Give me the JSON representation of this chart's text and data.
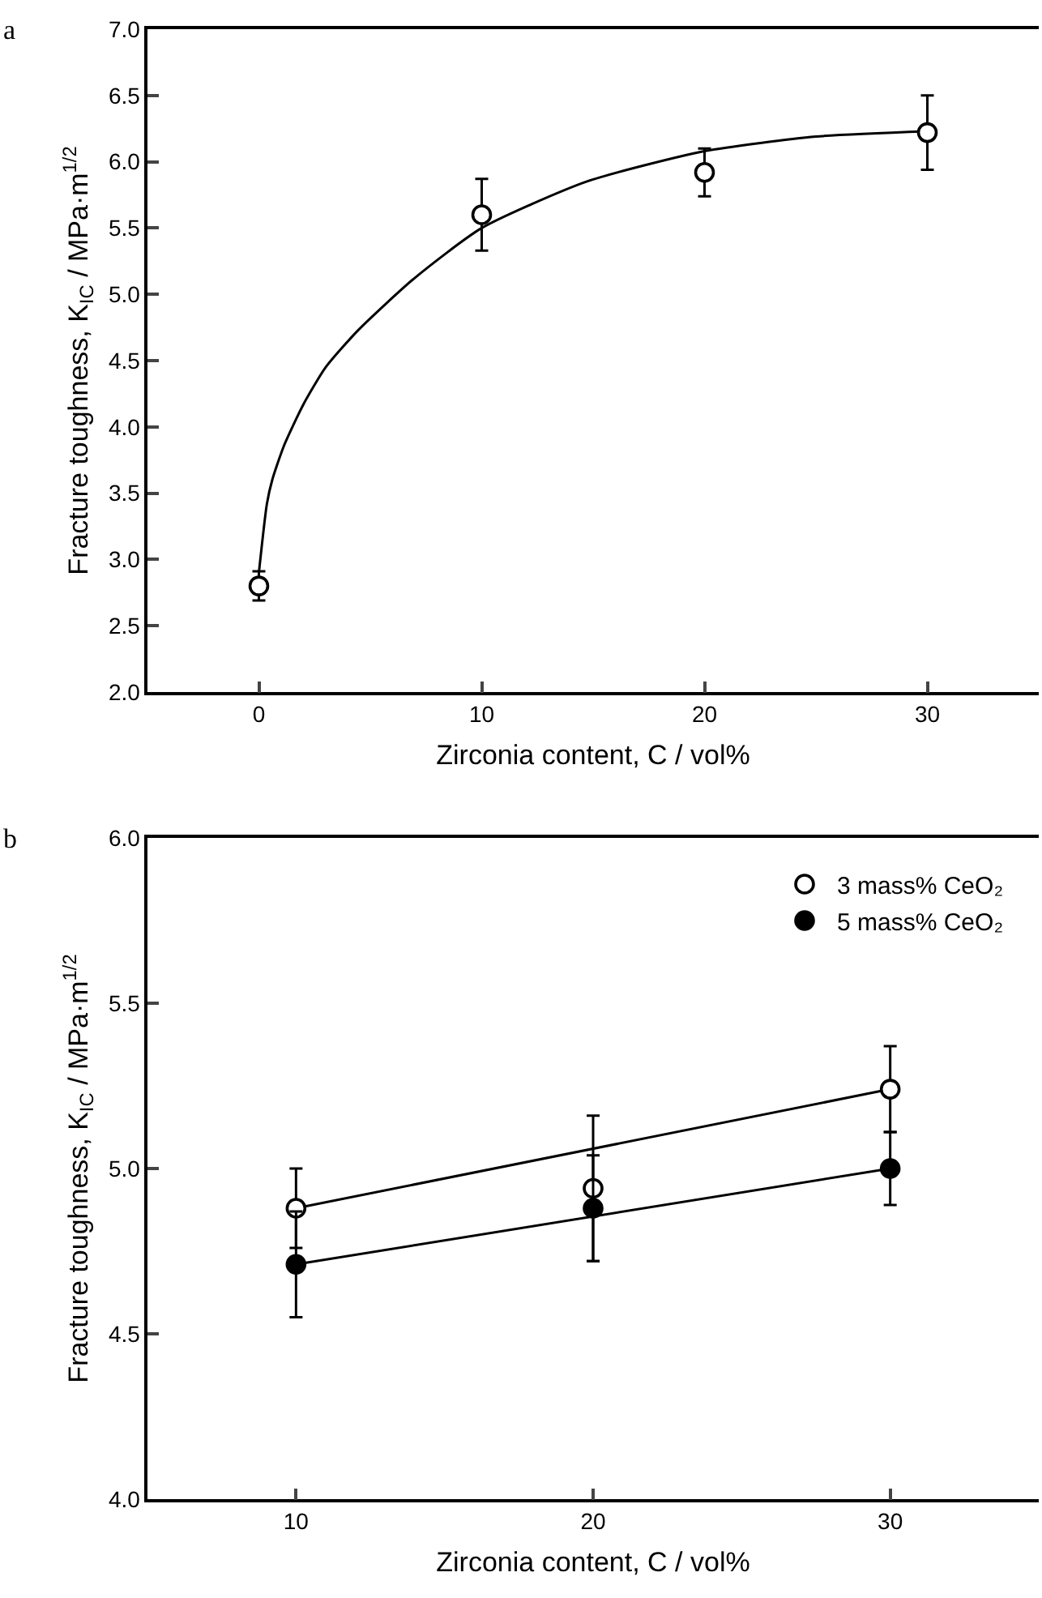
{
  "chart_data": [
    {
      "type": "scatter",
      "xlabel": "Zirconia content, C / vol%",
      "ylabel": "Fracture toughness, K$_{IC}$ / MPa·m$^{1/2}$",
      "annotations": [
        "a"
      ],
      "x": [
        0,
        10,
        20,
        30
      ],
      "series": [
        {
          "color": "#ffffff",
          "values": [
            2.8,
            5.6,
            5.92,
            6.22
          ],
          "errors": [
            0.11,
            0.27,
            0.18,
            0.28
          ],
          "marker": "circle"
        },
        {
          "type": "line",
          "color": "#000000",
          "marker": "none",
          "x": [
            0,
            0.36,
            0.6,
            1.13,
            2,
            3,
            4.46,
            6.97,
            10,
            14.7,
            20,
            25,
            30
          ],
          "values": [
            2.9,
            3.42,
            3.6,
            3.86,
            4.17,
            4.45,
            4.73,
            5.12,
            5.5,
            5.85,
            6.08,
            6.19,
            6.23
          ]
        }
      ],
      "xlim": [
        -5,
        35
      ],
      "xticks": [
        0,
        10,
        20,
        30
      ],
      "ylim": [
        2,
        7
      ],
      "yticks": [
        {
          "value": 2,
          "label": "2.0"
        },
        {
          "value": 2.5,
          "label": "2.5"
        },
        {
          "value": 3,
          "label": "3.0"
        },
        {
          "value": 3.5,
          "label": "3.5"
        },
        {
          "value": 4,
          "label": "4.0"
        },
        {
          "value": 4.5,
          "label": "4.5"
        },
        {
          "value": 5,
          "label": "5.0"
        },
        {
          "value": 5.5,
          "label": "5.5"
        },
        {
          "value": 6,
          "label": "6.0"
        },
        {
          "value": 6.5,
          "label": "6.5"
        },
        {
          "value": 7,
          "label": "7.0"
        }
      ],
      "grid": false,
      "legend": false
    },
    {
      "type": "scatter",
      "xlabel": "Zirconia content, C / vol%",
      "ylabel": "Fracture toughness, K$_{IC}$ / MPa·m$^{1/2}$",
      "annotations": [
        "b"
      ],
      "x": [
        10,
        20,
        30
      ],
      "series": [
        {
          "name": "3 mass% CeO₂",
          "color": "#ffffff",
          "values": [
            4.88,
            4.94,
            5.24
          ],
          "errors": [
            0.12,
            0.22,
            0.13
          ],
          "marker": "circle"
        },
        {
          "name": "5 mass% CeO₂",
          "color": "#000000",
          "values": [
            4.71,
            4.88,
            5.0
          ],
          "errors": [
            0.16,
            0.16,
            0.11
          ],
          "marker": "circle"
        },
        {
          "type": "line",
          "color": "#000000",
          "marker": "none",
          "x": [
            10,
            30
          ],
          "values": [
            4.88,
            5.24
          ]
        },
        {
          "type": "line",
          "color": "#000000",
          "marker": "none",
          "x": [
            10,
            30
          ],
          "values": [
            4.71,
            5.0
          ]
        }
      ],
      "xlim": [
        5,
        35
      ],
      "xticks": [
        10,
        20,
        30
      ],
      "ylim": [
        4,
        6
      ],
      "yticks": [
        {
          "value": 4,
          "label": "4.0"
        },
        {
          "value": 4.5,
          "label": "4.5"
        },
        {
          "value": 5,
          "label": "5.0"
        },
        {
          "value": 5.5,
          "label": "5.5"
        },
        {
          "value": 6,
          "label": "6.0"
        }
      ],
      "grid": false,
      "legend": "top right"
    }
  ]
}
